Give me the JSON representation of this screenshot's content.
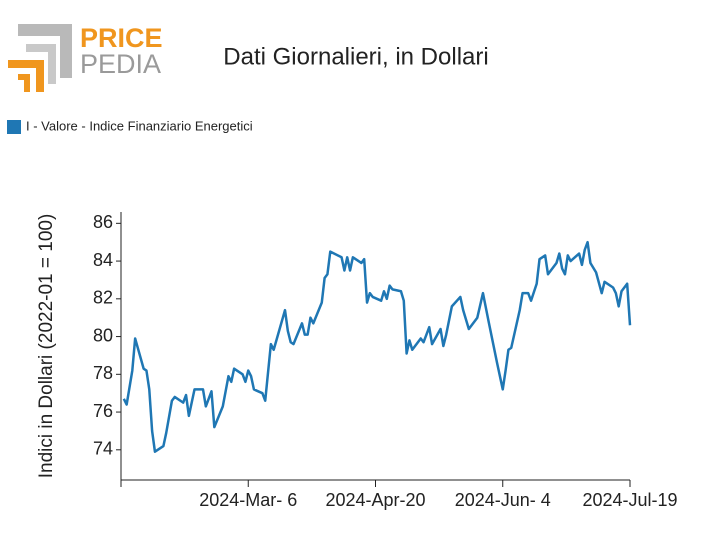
{
  "logo": {
    "top": "PRICE",
    "bottom": "PEDIA"
  },
  "chart_data": {
    "type": "line",
    "title": "Dati Giornalieri, in Dollari",
    "y_label": "Indici in Dollari (2022-01 = 100)",
    "legend": "top-left",
    "grid": false,
    "x": [
      "2024-01-22",
      "2024-01-23",
      "2024-01-25",
      "2024-01-26",
      "2024-01-29",
      "2024-01-30",
      "2024-01-31",
      "2024-02-01",
      "2024-02-02",
      "2024-02-05",
      "2024-02-06",
      "2024-02-08",
      "2024-02-09",
      "2024-02-12",
      "2024-02-13",
      "2024-02-14",
      "2024-02-16",
      "2024-02-19",
      "2024-02-20",
      "2024-02-22",
      "2024-02-23",
      "2024-02-26",
      "2024-02-28",
      "2024-02-29",
      "2024-03-01",
      "2024-03-04",
      "2024-03-05",
      "2024-03-06",
      "2024-03-07",
      "2024-03-08",
      "2024-03-11",
      "2024-03-12",
      "2024-03-14",
      "2024-03-15",
      "2024-03-19",
      "2024-03-20",
      "2024-03-21",
      "2024-03-22",
      "2024-03-25",
      "2024-03-26",
      "2024-03-27",
      "2024-03-28",
      "2024-03-29",
      "2024-04-01",
      "2024-04-02",
      "2024-04-03",
      "2024-04-04",
      "2024-04-08",
      "2024-04-09",
      "2024-04-10",
      "2024-04-11",
      "2024-04-12",
      "2024-04-15",
      "2024-04-16",
      "2024-04-17",
      "2024-04-18",
      "2024-04-19",
      "2024-04-22",
      "2024-04-23",
      "2024-04-24",
      "2024-04-25",
      "2024-04-26",
      "2024-04-29",
      "2024-04-30",
      "2024-05-01",
      "2024-05-02",
      "2024-05-03",
      "2024-05-04",
      "2024-05-06",
      "2024-05-07",
      "2024-05-08",
      "2024-05-09",
      "2024-05-10",
      "2024-05-13",
      "2024-05-14",
      "2024-05-15",
      "2024-05-17",
      "2024-05-20",
      "2024-05-21",
      "2024-05-23",
      "2024-05-26",
      "2024-05-28",
      "2024-05-30",
      "2024-06-02",
      "2024-06-04",
      "2024-06-05",
      "2024-06-06",
      "2024-06-07",
      "2024-06-10",
      "2024-06-11",
      "2024-06-13",
      "2024-06-14",
      "2024-06-16",
      "2024-06-17",
      "2024-06-18",
      "2024-06-19",
      "2024-06-20",
      "2024-06-23",
      "2024-06-24",
      "2024-06-25",
      "2024-06-26",
      "2024-06-27",
      "2024-06-28",
      "2024-07-01",
      "2024-07-02",
      "2024-07-03",
      "2024-07-04",
      "2024-07-05",
      "2024-07-07",
      "2024-07-09",
      "2024-07-10",
      "2024-07-13",
      "2024-07-14",
      "2024-07-15",
      "2024-07-16",
      "2024-07-18",
      "2024-07-19"
    ],
    "series": [
      {
        "name": "I - Valore - Indice Finanziario Energetici",
        "color": "#1f77b4",
        "values": [
          76.7,
          76.4,
          78.2,
          79.9,
          78.3,
          78.2,
          77.2,
          75.0,
          73.9,
          74.2,
          74.9,
          76.6,
          76.8,
          76.5,
          76.9,
          75.8,
          77.2,
          77.2,
          76.3,
          77.1,
          75.2,
          76.3,
          77.9,
          77.6,
          78.3,
          78.0,
          77.6,
          78.2,
          77.9,
          77.2,
          77.0,
          76.6,
          79.6,
          79.3,
          81.4,
          80.3,
          79.7,
          79.6,
          80.7,
          80.1,
          80.1,
          81.0,
          80.7,
          81.8,
          83.1,
          83.3,
          84.5,
          84.2,
          83.5,
          84.2,
          83.5,
          84.2,
          83.9,
          84.1,
          81.8,
          82.3,
          82.1,
          81.9,
          82.4,
          82.0,
          82.7,
          82.5,
          82.4,
          81.9,
          79.1,
          79.8,
          79.3,
          79.5,
          79.9,
          79.7,
          80.1,
          80.5,
          79.6,
          80.4,
          79.5,
          80.1,
          81.6,
          82.1,
          81.4,
          80.4,
          81.0,
          82.3,
          80.8,
          78.6,
          77.2,
          78.2,
          79.3,
          79.4,
          81.4,
          82.3,
          82.3,
          81.9,
          82.8,
          84.1,
          84.2,
          84.3,
          83.3,
          83.9,
          84.4,
          83.6,
          83.3,
          84.3,
          84.0,
          84.4,
          83.8,
          84.6,
          85.0,
          83.9,
          83.4,
          82.3,
          82.9,
          82.6,
          82.3,
          81.6,
          82.4,
          82.8,
          80.6
        ]
      }
    ],
    "xlim": [
      "2024-01-21",
      "2024-07-19"
    ],
    "xticks": [
      {
        "value": "2024-01-21",
        "label": null
      },
      {
        "value": "2024-03-06",
        "label": "2024-Mar- 6"
      },
      {
        "value": "2024-04-20",
        "label": "2024-Apr-20"
      },
      {
        "value": "2024-06-04",
        "label": "2024-Jun- 4"
      },
      {
        "value": "2024-07-19",
        "label": "2024-Jul-19"
      }
    ],
    "ylim": [
      72.4,
      86.6
    ],
    "yticks": [
      74,
      76,
      78,
      80,
      82,
      84,
      86
    ]
  }
}
